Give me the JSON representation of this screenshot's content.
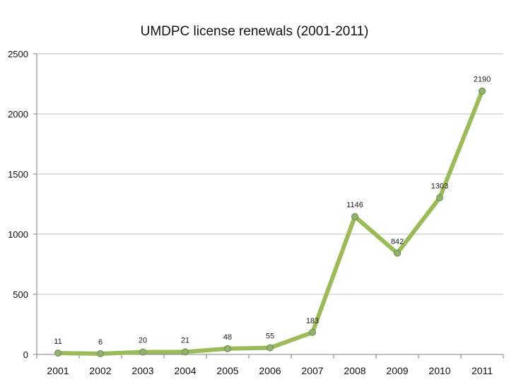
{
  "chart_data": {
    "type": "line",
    "title": "UMDPC license renewals (2001-2011)",
    "xlabel": "",
    "ylabel": "",
    "categories": [
      "2001",
      "2002",
      "2003",
      "2004",
      "2005",
      "2006",
      "2007",
      "2008",
      "2009",
      "2010",
      "2011"
    ],
    "values": [
      11,
      6,
      20,
      21,
      48,
      55,
      183,
      1146,
      842,
      1303,
      2190
    ],
    "ylim": [
      0,
      2500
    ],
    "yticks": [
      0,
      500,
      1000,
      1500,
      2000,
      2500
    ],
    "grid": true,
    "legend": "none",
    "data_labels": true,
    "colors": {
      "line": "#9bbb59",
      "marker_fill": "#8fb271",
      "marker_stroke": "#6b8e4e",
      "grid": "#bfbfbf"
    }
  }
}
